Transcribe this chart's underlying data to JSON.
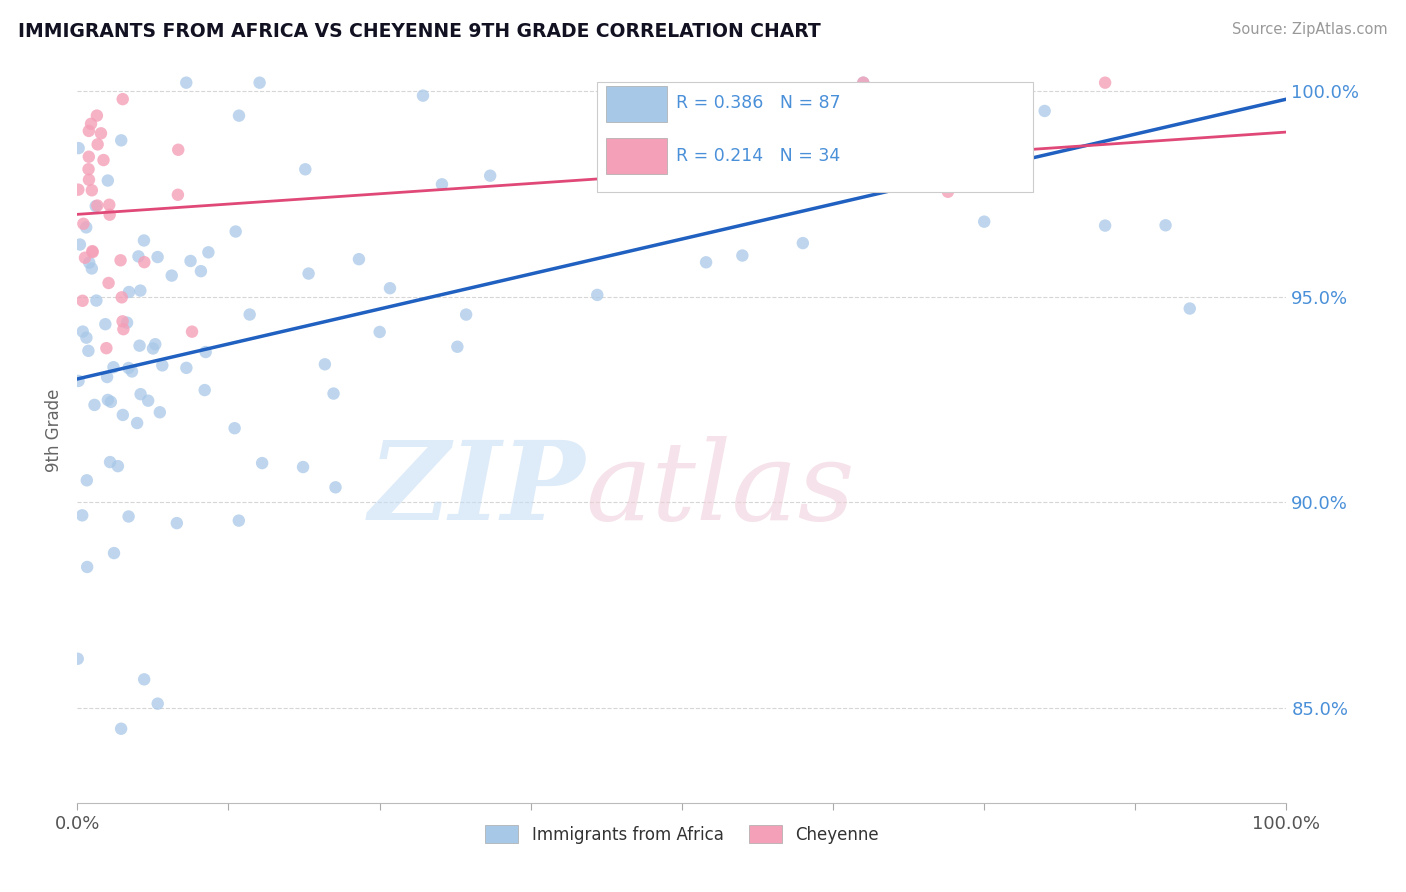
{
  "title": "IMMIGRANTS FROM AFRICA VS CHEYENNE 9TH GRADE CORRELATION CHART",
  "source_text": "Source: ZipAtlas.com",
  "ylabel": "9th Grade",
  "legend_blue_label": "Immigrants from Africa",
  "legend_pink_label": "Cheyenne",
  "R_blue": 0.386,
  "N_blue": 87,
  "R_pink": 0.214,
  "N_pink": 34,
  "xlim": [
    0.0,
    1.0
  ],
  "ylim": [
    0.827,
    1.008
  ],
  "blue_color": "#a8c8e8",
  "pink_color": "#f4a0b8",
  "blue_line_color": "#2060c0",
  "pink_line_color": "#e04878",
  "background_color": "#ffffff",
  "grid_color": "#cccccc",
  "blue_line_start_y": 0.93,
  "blue_line_end_y": 0.998,
  "pink_line_start_y": 0.97,
  "pink_line_end_y": 0.99,
  "ytick_positions": [
    0.85,
    0.9,
    0.95,
    1.0
  ],
  "ytick_labels": [
    "85.0%",
    "90.0%",
    "95.0%",
    "100.0%"
  ],
  "ytick_color": "#4a90d9"
}
